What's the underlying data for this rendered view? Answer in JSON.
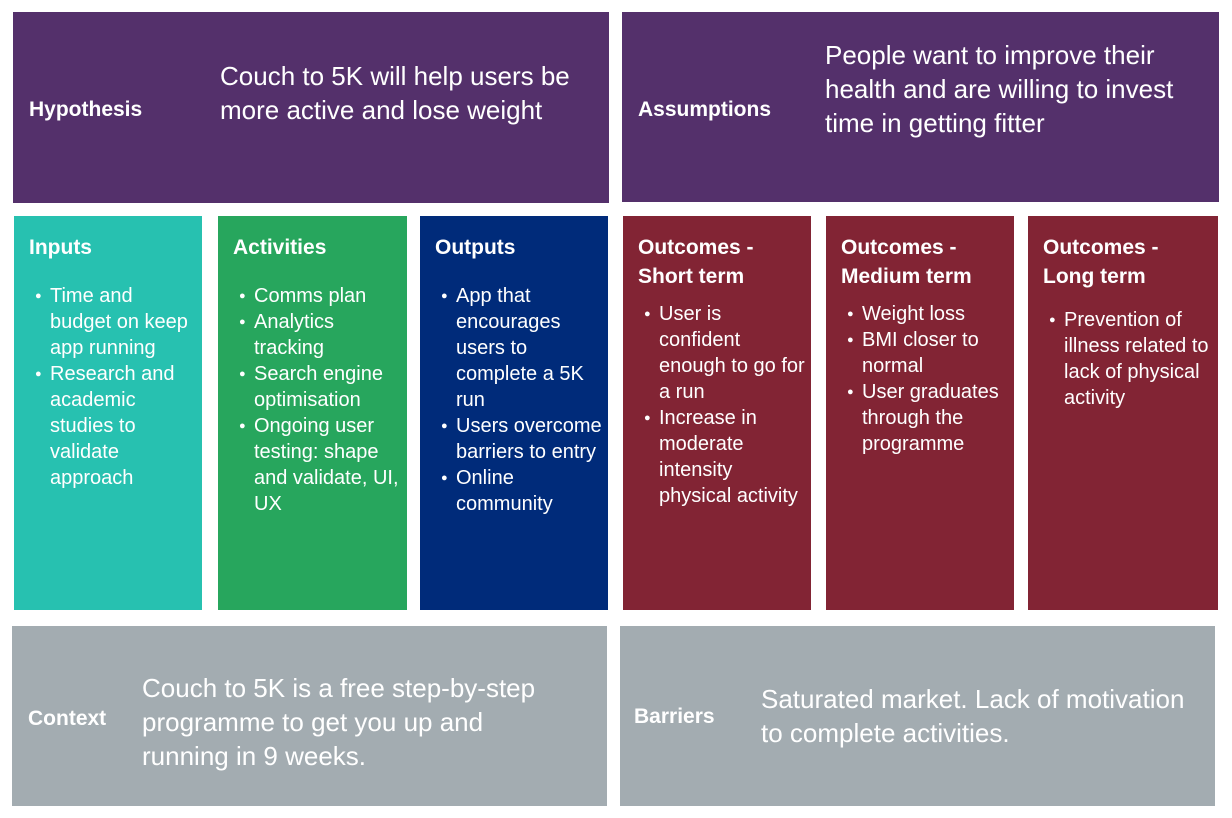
{
  "hypothesis": {
    "label": "Hypothesis",
    "text": "Couch to 5K will help users be more active and lose weight"
  },
  "assumptions": {
    "label": "Assumptions",
    "text": "People want to improve their health and are willing to invest time in getting fitter"
  },
  "columns": [
    {
      "title": "Inputs",
      "color": "#27c1b0",
      "items": [
        "Time and budget on keep app running",
        "Research and academic studies to validate approach"
      ]
    },
    {
      "title": "Activities",
      "color": "#27a65d",
      "items": [
        "Comms plan",
        "Analytics tracking",
        "Search engine optimisation",
        "Ongoing user testing: shape and validate, UI, UX"
      ]
    },
    {
      "title": "Outputs",
      "color": "#002b7a",
      "items": [
        "App that encourages users to complete a 5K run",
        "Users overcome barriers to entry",
        "Online community"
      ]
    },
    {
      "title": "Outcomes - Short term",
      "color": "#822434",
      "items": [
        "User is confident enough to go for a run",
        "Increase in moderate intensity physical activity"
      ]
    },
    {
      "title": "Outcomes - Medium term",
      "color": "#822434",
      "items": [
        "Weight loss",
        "BMI closer to normal",
        "User graduates through the programme"
      ]
    },
    {
      "title": "Outcomes - Long term",
      "color": "#822434",
      "items": [
        "Prevention of illness related to lack of physical activity"
      ]
    }
  ],
  "context": {
    "label": "Context",
    "text": "Couch to 5K is a free step-by-step programme to get you up and running in 9 weeks."
  },
  "barriers": {
    "label": "Barriers",
    "text": "Saturated market. Lack of motivation to complete activities."
  }
}
